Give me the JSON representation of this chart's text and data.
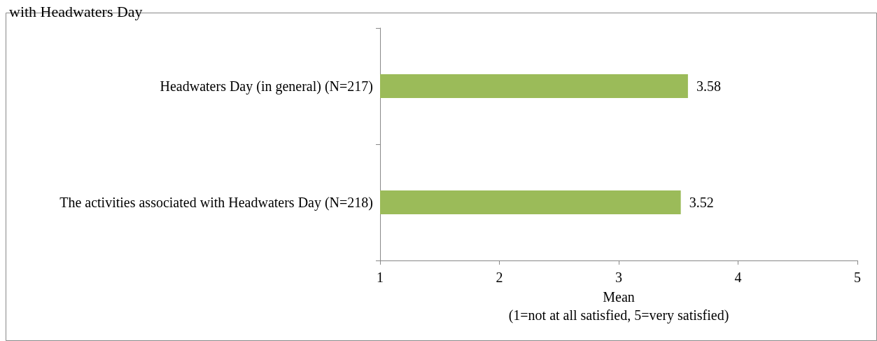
{
  "chart_data": {
    "type": "bar",
    "orientation": "horizontal",
    "title": "with Headwaters Day",
    "categories": [
      "Headwaters Day (in general) (N=217)",
      "The activities associated with Headwaters Day (N=218)"
    ],
    "values": [
      3.58,
      3.52
    ],
    "color": "#9bbb59",
    "xlim": [
      1,
      5
    ],
    "xticks": [
      1,
      2,
      3,
      4,
      5
    ],
    "xlabel": "Mean\n(1=not at all satisfied, 5=very satisfied)",
    "data_labels": true,
    "grid": false
  }
}
